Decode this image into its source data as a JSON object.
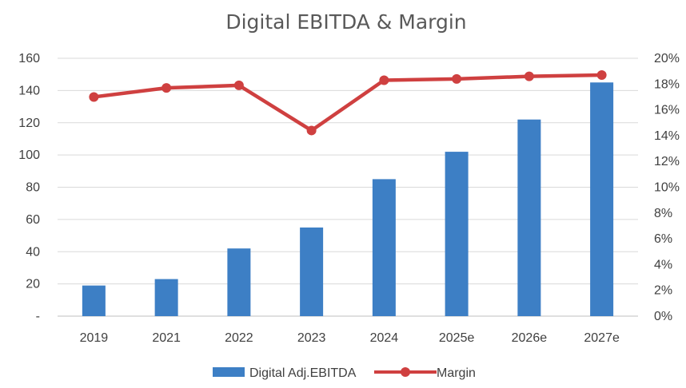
{
  "chart_data": {
    "type": "bar+line",
    "title": "Digital EBITDA & Margin",
    "categories": [
      "2019",
      "2021",
      "2022",
      "2023",
      "2024",
      "2025e",
      "2026e",
      "2027e"
    ],
    "series": [
      {
        "name": "Digital Adj.EBITDA",
        "type": "bar",
        "axis": "left",
        "color": "#3d7fc5",
        "values": [
          19,
          23,
          42,
          55,
          85,
          102,
          122,
          145
        ]
      },
      {
        "name": "Margin",
        "type": "line",
        "axis": "right",
        "color": "#cf4040",
        "values": [
          17.0,
          17.7,
          17.9,
          14.4,
          18.3,
          18.4,
          18.6,
          18.7
        ]
      }
    ],
    "y_left": {
      "min": 0,
      "max": 160,
      "ticks": [
        "-",
        "20",
        "40",
        "60",
        "80",
        "100",
        "120",
        "140",
        "160"
      ]
    },
    "y_right": {
      "min": 0,
      "max": 20,
      "ticks": [
        "0%",
        "2%",
        "4%",
        "6%",
        "8%",
        "10%",
        "12%",
        "14%",
        "16%",
        "18%",
        "20%"
      ]
    },
    "grid": "horizontal",
    "legend": "bottom"
  }
}
